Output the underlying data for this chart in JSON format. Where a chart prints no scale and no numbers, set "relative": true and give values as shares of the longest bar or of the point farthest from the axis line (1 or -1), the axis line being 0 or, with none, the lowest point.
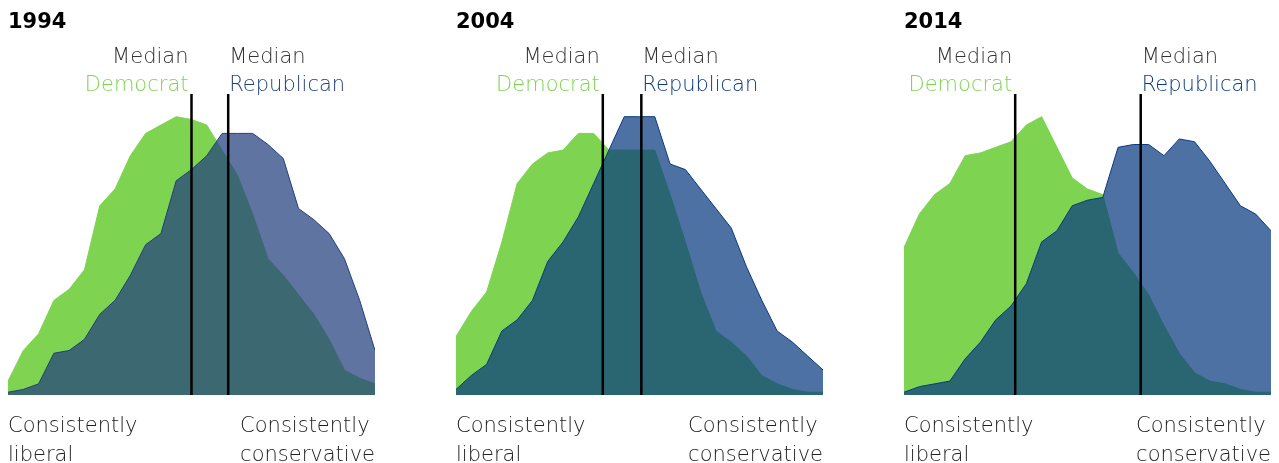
{
  "chart_data": [
    {
      "type": "area",
      "title": "1994",
      "relative": true,
      "marker": "none",
      "categories": [
        null,
        null,
        null,
        null,
        null,
        null,
        null,
        null,
        null,
        null,
        null,
        null,
        null,
        null,
        null,
        null,
        null,
        null,
        null,
        null,
        null,
        null,
        null,
        null,
        null
      ],
      "series": [
        {
          "color": "#7ed450",
          "values": [
            0.05,
            0.16,
            0.22,
            0.34,
            0.38,
            0.45,
            0.68,
            0.74,
            0.86,
            0.94,
            0.97,
            1,
            0.99,
            0.97,
            0.88,
            0.79,
            0.65,
            0.49,
            0.43,
            0.36,
            0.29,
            0.2,
            0.09,
            0.06,
            0.04
          ]
        },
        {
          "color": "#223f7e",
          "values": [
            0.01,
            0.02,
            0.04,
            0.15,
            0.16,
            0.2,
            0.29,
            0.34,
            0.43,
            0.54,
            0.58,
            0.77,
            0.81,
            0.86,
            0.94,
            0.94,
            0.94,
            0.9,
            0.85,
            0.67,
            0.63,
            0.58,
            0.49,
            0.34,
            0.16
          ]
        }
      ],
      "annotations": [
        "Median Democrat",
        "Median Republican",
        "Consistently liberal",
        "Consistently conservative"
      ]
    },
    {
      "type": "area",
      "title": "2004",
      "relative": true,
      "marker": "none",
      "categories": [
        null,
        null,
        null,
        null,
        null,
        null,
        null,
        null,
        null,
        null,
        null,
        null,
        null,
        null,
        null,
        null,
        null,
        null,
        null,
        null,
        null,
        null,
        null,
        null,
        null
      ],
      "series": [
        {
          "color": "#7ed450",
          "values": [
            0.21,
            0.3,
            0.37,
            0.55,
            0.76,
            0.83,
            0.87,
            0.88,
            0.94,
            0.94,
            0.88,
            0.88,
            0.88,
            0.88,
            0.72,
            0.55,
            0.37,
            0.23,
            0.19,
            0.14,
            0.07,
            0.04,
            0.02,
            0.01,
            0.01
          ]
        },
        {
          "color": "#0a3a80",
          "values": [
            0.02,
            0.07,
            0.11,
            0.23,
            0.27,
            0.34,
            0.48,
            0.55,
            0.64,
            0.76,
            0.88,
            1,
            1,
            1,
            0.83,
            0.81,
            0.74,
            0.67,
            0.6,
            0.46,
            0.34,
            0.23,
            0.19,
            0.14,
            0.09
          ]
        }
      ],
      "annotations": [
        "Median Democrat",
        "Median Republican",
        "Consistently liberal",
        "Consistently conservative"
      ]
    },
    {
      "type": "area",
      "title": "2014",
      "relative": true,
      "marker": "none",
      "categories": [
        null,
        null,
        null,
        null,
        null,
        null,
        null,
        null,
        null,
        null,
        null,
        null,
        null,
        null,
        null,
        null,
        null,
        null,
        null,
        null,
        null,
        null,
        null,
        null,
        null
      ],
      "series": [
        {
          "color": "#7ed450",
          "values": [
            0.53,
            0.65,
            0.72,
            0.76,
            0.86,
            0.87,
            0.89,
            0.91,
            0.97,
            1,
            0.89,
            0.78,
            0.74,
            0.72,
            0.51,
            0.44,
            0.36,
            0.25,
            0.15,
            0.08,
            0.05,
            0.04,
            0.02,
            0.01,
            0.01
          ]
        },
        {
          "color": "#0a3a80",
          "values": [
            0.01,
            0.03,
            0.04,
            0.05,
            0.13,
            0.19,
            0.27,
            0.32,
            0.4,
            0.55,
            0.59,
            0.68,
            0.7,
            0.71,
            0.89,
            0.9,
            0.9,
            0.86,
            0.92,
            0.91,
            0.84,
            0.76,
            0.68,
            0.65,
            0.59
          ]
        }
      ],
      "annotations": [
        "Median Democrat",
        "Median Republican",
        "Consistently liberal",
        "Consistently conservative"
      ]
    }
  ]
}
